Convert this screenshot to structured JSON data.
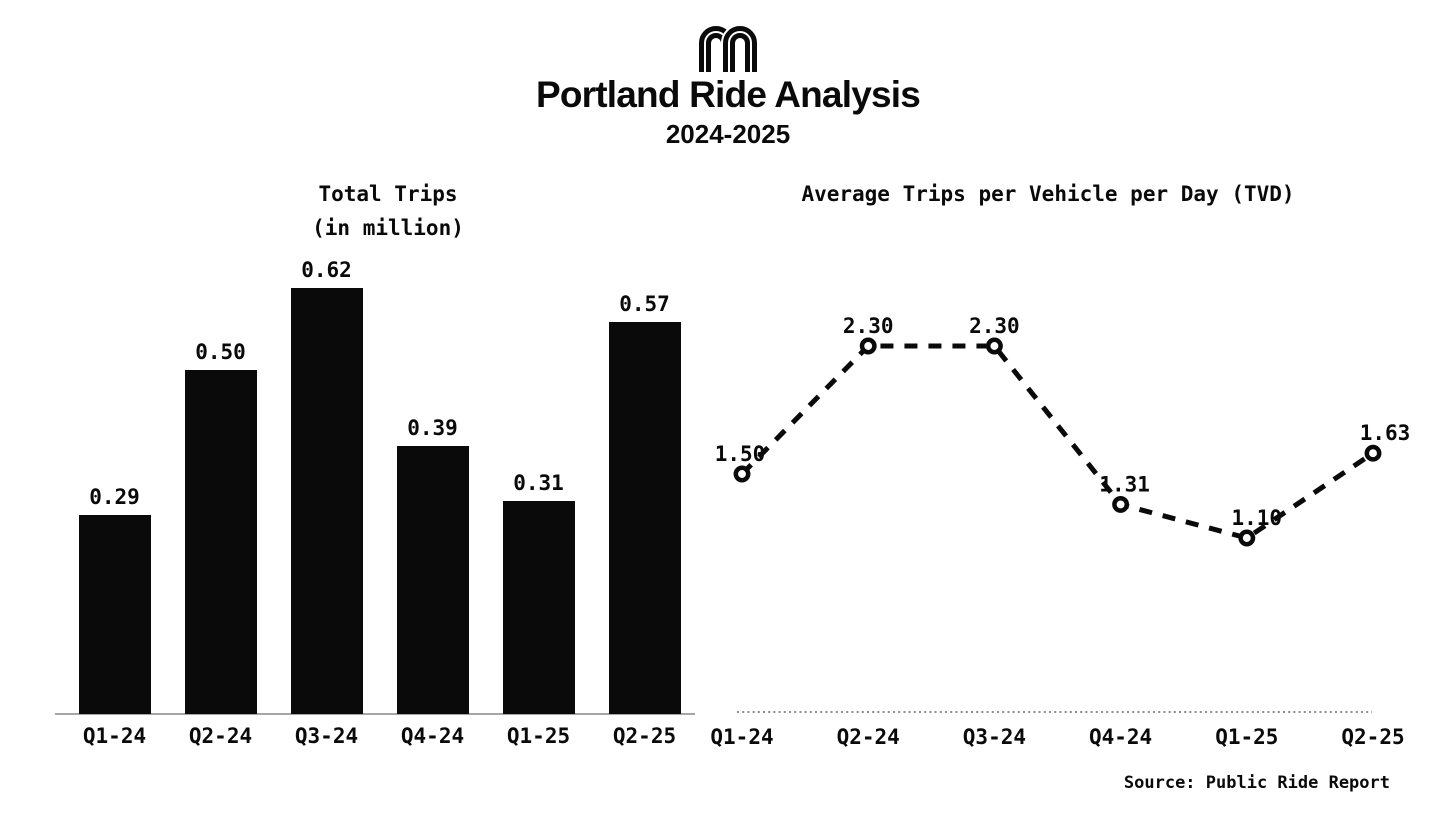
{
  "header": {
    "logo_icon": "ride-report-double-arch-m",
    "title": "Portland Ride Analysis",
    "subtitle": "2024-2025"
  },
  "source_note": "Source: Public Ride Report",
  "colors": {
    "ink": "#0a0a0a",
    "background": "#ffffff",
    "bar_axis_line": "#a6a6a6",
    "dotted_axis_line": "#666666",
    "marker_fill": "#ffffff"
  },
  "chart_data": [
    {
      "type": "bar",
      "title": "Total Trips",
      "subtitle": "(in million)",
      "categories": [
        "Q1-24",
        "Q2-24",
        "Q3-24",
        "Q4-24",
        "Q1-25",
        "Q2-25"
      ],
      "values": [
        0.29,
        0.5,
        0.62,
        0.39,
        0.31,
        0.57
      ],
      "data_labels": [
        "0.29",
        "0.50",
        "0.62",
        "0.39",
        "0.31",
        "0.57"
      ],
      "bar_color": "#0a0a0a",
      "ylim": [
        0,
        0.65
      ],
      "grid": false,
      "legend": false,
      "xlabel": "",
      "ylabel": ""
    },
    {
      "type": "line",
      "title": "Average Trips per Vehicle per Day (TVD)",
      "categories": [
        "Q1-24",
        "Q2-24",
        "Q3-24",
        "Q4-24",
        "Q1-25",
        "Q2-25"
      ],
      "values": [
        1.5,
        2.3,
        2.3,
        1.31,
        1.1,
        1.63
      ],
      "data_labels": [
        "1.50",
        "2.30",
        "2.30",
        "1.31",
        "1.10",
        "1.63"
      ],
      "line_style": "dashed",
      "marker": "open-circle",
      "line_color": "#0a0a0a",
      "ylim": [
        0,
        2.6
      ],
      "grid": false,
      "legend": false,
      "xlabel": "",
      "ylabel": ""
    }
  ]
}
